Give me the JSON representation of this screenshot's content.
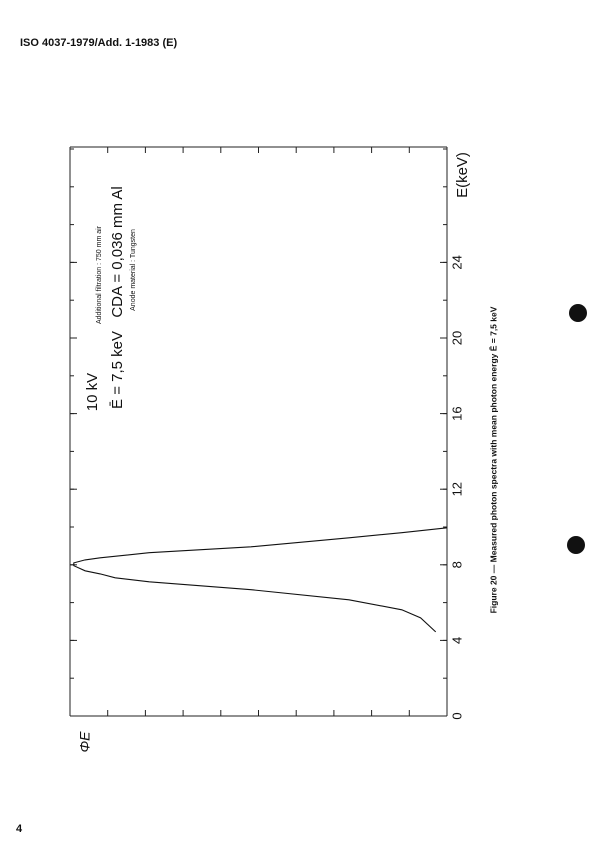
{
  "header": "ISO 4037-1979/Add. 1-1983 (E)",
  "page_number": "4",
  "chart_data": {
    "type": "line",
    "title": "Figure 20 — Measured photon spectra with mean photon energy Ē = 7,5 keV",
    "x_label": "E(keV)",
    "y_label": "ΦE",
    "annotations": [
      "10  kV",
      "Ē = 7,5 keV",
      "Additional filtration : 750 mm air",
      "CDA = 0,036 mm Al",
      "Anode material : Tungsten"
    ],
    "x": [
      4.45,
      5.19,
      5.62,
      6.15,
      6.68,
      7.1,
      7.31,
      7.52,
      7.68,
      7.95,
      8.1,
      8.26,
      8.37,
      8.64,
      8.95,
      9.43,
      9.7,
      9.96
    ],
    "series": [
      {
        "name": "ΦE",
        "color": "#111111",
        "values": [
          0.03,
          0.07,
          0.12,
          0.26,
          0.52,
          0.79,
          0.88,
          0.92,
          0.96,
          0.99,
          0.99,
          0.96,
          0.92,
          0.79,
          0.52,
          0.26,
          0.12,
          0
        ]
      }
    ],
    "xlim": [
      0,
      30
    ],
    "xticks": [
      0,
      4,
      8,
      12,
      16,
      20,
      24
    ],
    "ylim": [
      0,
      1
    ]
  }
}
